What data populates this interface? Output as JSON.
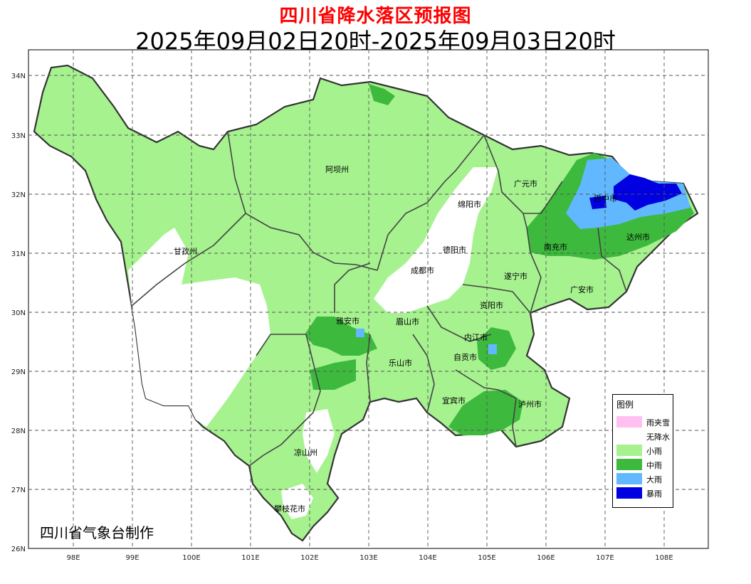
{
  "title": "四川省降水落区预报图",
  "subtitle": "2025年09月02日20时-2025年09月03日20时",
  "credit": "四川省气象台制作",
  "lat_ticks": [
    "34N",
    "33N",
    "32N",
    "31N",
    "30N",
    "29N",
    "28N",
    "27N",
    "26N"
  ],
  "lon_ticks": [
    "98E",
    "99E",
    "100E",
    "101E",
    "102E",
    "103E",
    "104E",
    "105E",
    "106E",
    "107E",
    "108E"
  ],
  "cities": [
    "阿坝州",
    "广元市",
    "巴中市",
    "绵阳市",
    "达州市",
    "德阳市",
    "南充市",
    "甘孜州",
    "成都市",
    "遂宁市",
    "广安市",
    "资阳市",
    "雅安市",
    "眉山市",
    "内江市",
    "乐山市",
    "自贡市",
    "宜宾市",
    "泸州市",
    "凉山州",
    "攀枝花市"
  ],
  "legend": {
    "title": "图例",
    "items": [
      {
        "label": "雨夹雪",
        "color": "#ffbff0"
      },
      {
        "label": "无降水",
        "color": "#ffffff"
      },
      {
        "label": "小雨",
        "color": "#a6f28f"
      },
      {
        "label": "中雨",
        "color": "#3dba3d"
      },
      {
        "label": "大雨",
        "color": "#61b8ff"
      },
      {
        "label": "暴雨",
        "color": "#0000e1"
      }
    ]
  }
}
